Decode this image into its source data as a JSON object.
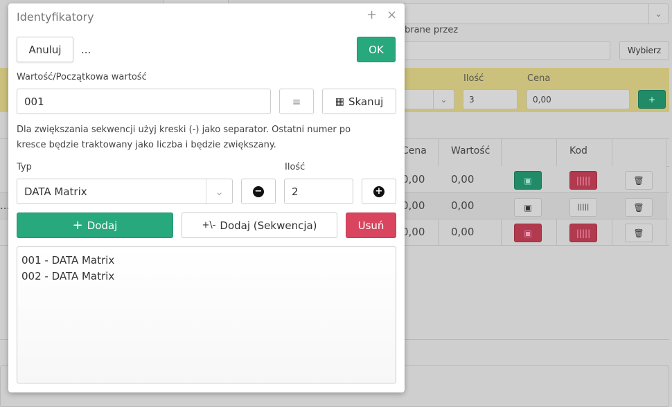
{
  "background": {
    "sorted_by_label": "brane przez",
    "choose_button": "Wybierz",
    "quantity_label": "Ilość",
    "quantity_value": "3",
    "price_label": "Cena",
    "price_value": "0,00",
    "add_button": "+",
    "table": {
      "headers": [
        "Cena",
        "Wartość",
        "",
        "Kod",
        ""
      ],
      "rows": [
        {
          "cena": "0,00",
          "wartosc": "0,00",
          "box_state": "green",
          "code_state": "red"
        },
        {
          "cena": "0,00",
          "wartosc": "0,00",
          "box_state": "default",
          "code_state": "default",
          "left": "..."
        },
        {
          "cena": "0,00",
          "wartosc": "0,00",
          "box_state": "red",
          "code_state": "red"
        }
      ]
    },
    "colors": {
      "green": "#218b68",
      "red": "#b23a4e"
    }
  },
  "dialog": {
    "title": "Identyfikatory",
    "maximize_icon": "+",
    "close_icon": "×",
    "cancel_button": "Anuluj",
    "ellipsis": "...",
    "ok_button": "OK",
    "value_label": "Wartość/Początkowa wartość",
    "value_input": "001",
    "scan_button": "Skanuj",
    "help_text": "Dla zwiększania sekwencji użyj kreski (-) jako separator. Ostatni numer po kresce będzie traktowany jako liczba i będzie zwiększany.",
    "type_label": "Typ",
    "type_value": "DATA Matrix",
    "qty_label": "Ilość",
    "qty_value": "2",
    "add_button": "Dodaj",
    "add_sequence_button": "Dodaj (Sekwencja)",
    "remove_button": "Usuń",
    "items": [
      "001 - DATA Matrix",
      "002 - DATA Matrix"
    ],
    "colors": {
      "primary": "#28a87d",
      "danger": "#d9455f"
    }
  }
}
